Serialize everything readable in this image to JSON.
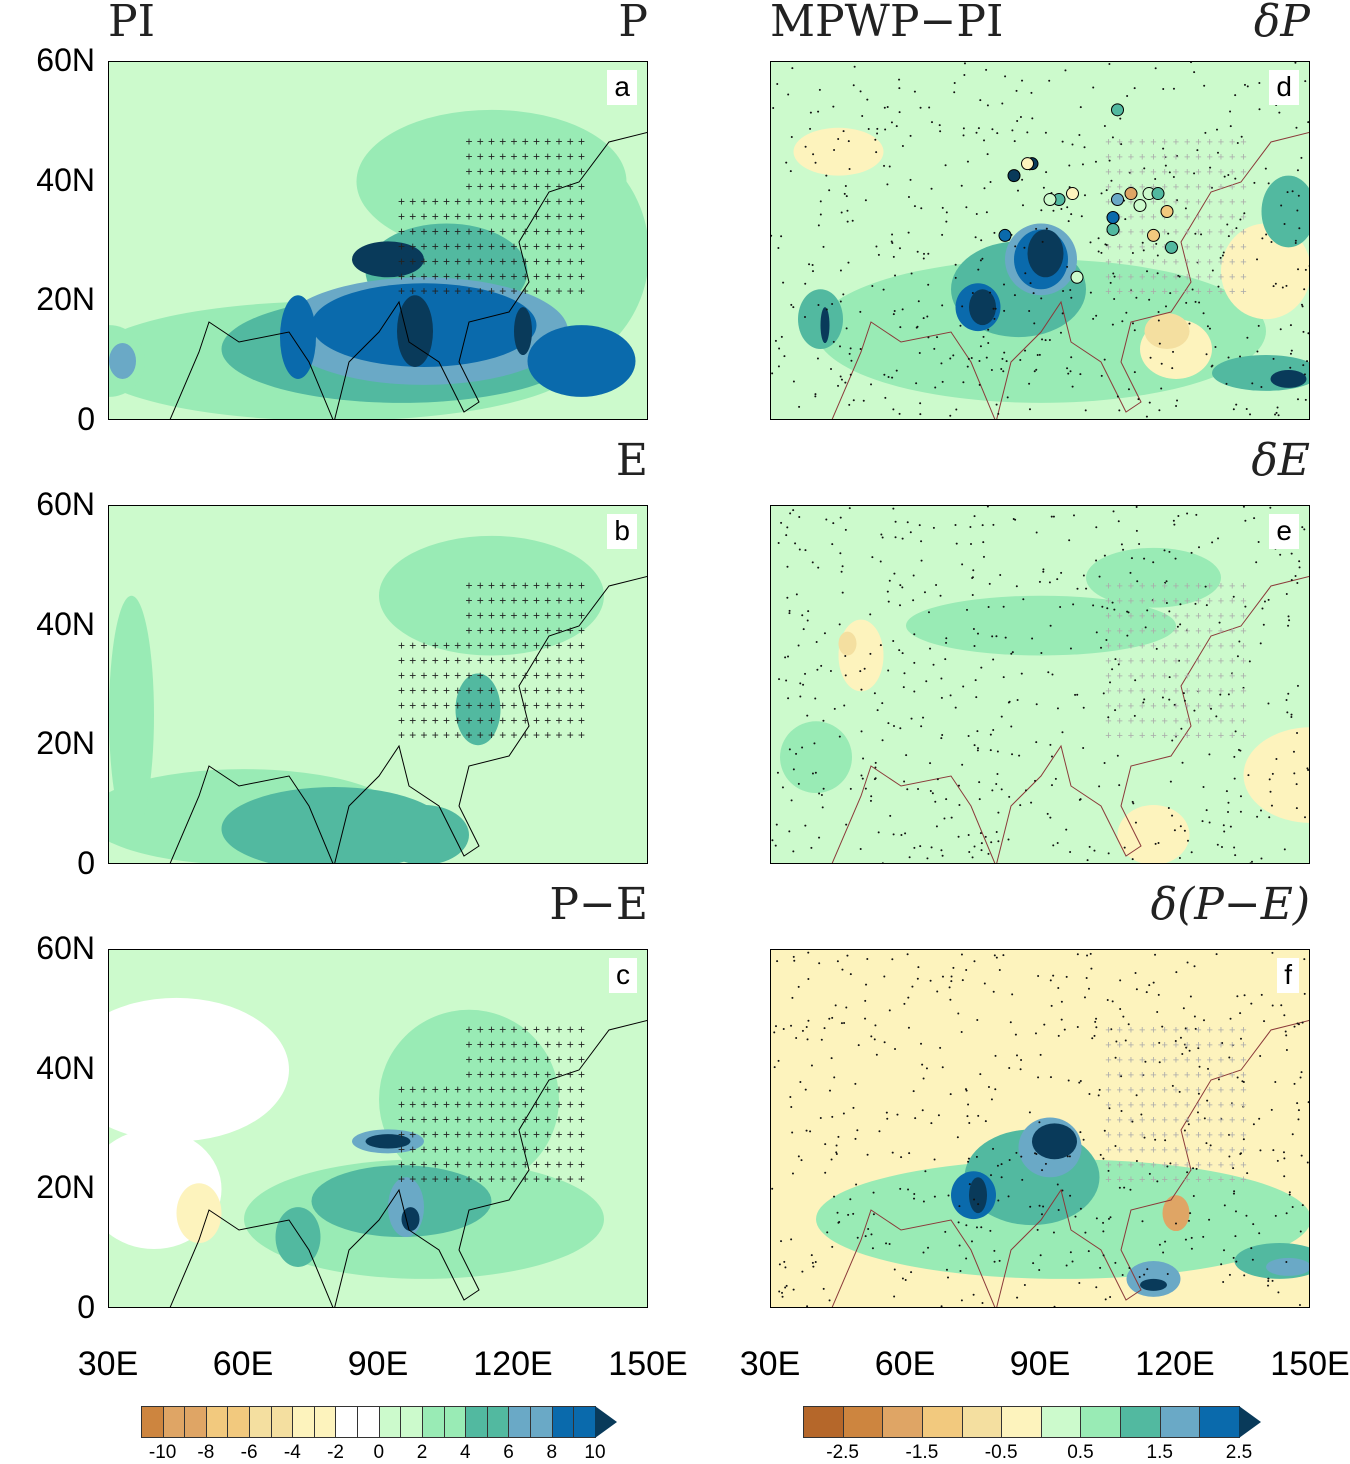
{
  "left_column": {
    "title": "PI"
  },
  "right_column": {
    "title": "MPWP−PI"
  },
  "panels": [
    {
      "letter": "a",
      "variable": "P"
    },
    {
      "letter": "b",
      "variable": "E"
    },
    {
      "letter": "c",
      "variable": "P−E"
    },
    {
      "letter": "d",
      "variable": "δP"
    },
    {
      "letter": "e",
      "variable": "δE"
    },
    {
      "letter": "f",
      "variable": "δ(P−E)"
    }
  ],
  "y_ticks": [
    "60N",
    "40N",
    "20N",
    "0"
  ],
  "x_ticks": [
    "30E",
    "60E",
    "90E",
    "120E",
    "150E"
  ],
  "colorbar_left": {
    "tick_labels": [
      "-10",
      "-8",
      "-6",
      "-4",
      "-2",
      "0",
      "2",
      "4",
      "6",
      "8",
      "10"
    ],
    "colors": [
      "#cd853f",
      "#dfa565",
      "#dfa565",
      "#f2c97e",
      "#f2c97e",
      "#f4dfa0",
      "#f4dfa0",
      "#fdf3bd",
      "#fdf3bd",
      "#ffffff",
      "#ffffff",
      "#ccfacc",
      "#ccfacc",
      "#99ebb5",
      "#99ebb5",
      "#52b9a0",
      "#52b9a0",
      "#6aa9c6",
      "#6aa9c6",
      "#0a6aac",
      "#0a6aac"
    ],
    "extend_color": "#093a5a"
  },
  "colorbar_right": {
    "tick_labels": [
      "-2.5",
      "-1.5",
      "-0.5",
      "0.5",
      "1.5",
      "2.5"
    ],
    "colors": [
      "#b5672a",
      "#cd853f",
      "#dfa565",
      "#f2c97e",
      "#f4dfa0",
      "#fdf3bd",
      "#ccfacc",
      "#99ebb5",
      "#52b9a0",
      "#6aa9c6",
      "#0a6aac"
    ],
    "extend_color": "#093a5a"
  }
}
